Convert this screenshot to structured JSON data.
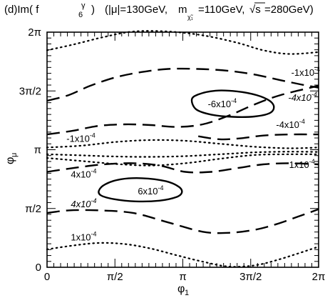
{
  "chart_data": {
    "type": "contour",
    "title": {
      "panel": "(d)",
      "quantity_prefix": "Im(",
      "quantity_symbol": "f",
      "quantity_superscript": "γ",
      "quantity_subscript": "6",
      "quantity_suffix": ")",
      "params_mu": "(|μ|=130GeV,",
      "params_m": "m",
      "params_m_sub": "χ̃₁",
      "params_m_value": "=110GeV,",
      "params_sqrt": "√s",
      "params_s_value": "=280GeV)"
    },
    "xlabel": {
      "symbol": "φ",
      "sub": "1"
    },
    "ylabel": {
      "symbol": "φ",
      "sub": "μ"
    },
    "xlim": [
      0,
      6.2832
    ],
    "ylim": [
      0,
      6.2832
    ],
    "x_ticks": [
      {
        "value": 0,
        "label": "0"
      },
      {
        "value": 1.5708,
        "label": "π/2"
      },
      {
        "value": 3.1416,
        "label": "π"
      },
      {
        "value": 4.7124,
        "label": "3π/2"
      },
      {
        "value": 6.2832,
        "label": "2π"
      }
    ],
    "y_ticks": [
      {
        "value": 0,
        "label": "0"
      },
      {
        "value": 1.5708,
        "label": "π/2"
      },
      {
        "value": 3.1416,
        "label": "π"
      },
      {
        "value": 4.7124,
        "label": "3π/2"
      },
      {
        "value": 6.2832,
        "label": "2π"
      }
    ],
    "grid": false,
    "contours": [
      {
        "id": "neg1e-4-top",
        "level": -0.0001,
        "style": "dotted",
        "x": [
          0,
          0.6,
          1.3,
          2.0,
          2.8,
          3.6,
          4.4,
          5.0,
          5.6,
          6.2832
        ],
        "y": [
          5.8,
          5.95,
          6.15,
          6.3,
          6.3,
          6.2,
          6.0,
          5.8,
          5.7,
          5.75
        ]
      },
      {
        "id": "neg1e-4-upper",
        "level": -0.0001,
        "style": "dashed",
        "x": [
          0,
          0.5,
          1.0,
          1.6,
          2.2,
          2.8,
          3.5,
          4.2,
          4.8,
          5.4,
          5.9,
          6.2832
        ],
        "y": [
          4.45,
          4.6,
          4.85,
          5.08,
          5.22,
          5.3,
          5.3,
          5.25,
          5.15,
          5.0,
          4.88,
          4.8
        ]
      },
      {
        "id": "neg4e-4-upper",
        "level": -0.0004,
        "style": "dashed",
        "x": [
          0,
          0.6,
          1.2,
          1.8,
          2.4,
          3.0,
          3.6,
          4.2,
          4.8,
          5.4,
          6.2832
        ],
        "y": [
          3.55,
          3.65,
          3.78,
          3.82,
          3.8,
          3.75,
          3.82,
          4.05,
          4.35,
          4.6,
          4.85
        ]
      },
      {
        "id": "neg6e-4",
        "level": -0.0006,
        "style": "solid",
        "closed": true,
        "x": [
          3.35,
          3.5,
          3.9,
          4.4,
          4.85,
          5.15,
          5.25,
          5.15,
          4.8,
          4.3,
          3.8,
          3.45,
          3.35
        ],
        "y": [
          4.48,
          4.62,
          4.72,
          4.7,
          4.6,
          4.45,
          4.28,
          4.12,
          4.03,
          4.02,
          4.08,
          4.22,
          4.38
        ]
      },
      {
        "id": "neg4e-4-right",
        "level": -0.0004,
        "style": "dashed",
        "x": [
          3.5,
          4.0,
          4.5,
          5.0,
          5.6,
          6.2832
        ],
        "y": [
          3.5,
          3.42,
          3.45,
          3.52,
          3.55,
          3.55
        ]
      },
      {
        "id": "neg1e-4-mid-a",
        "level": -0.0001,
        "style": "dotted",
        "x": [
          0,
          0.8,
          1.6,
          2.4,
          3.2,
          4.0,
          4.8,
          5.6,
          6.2832
        ],
        "y": [
          3.2,
          3.25,
          3.35,
          3.4,
          3.38,
          3.3,
          3.22,
          3.18,
          3.2
        ]
      },
      {
        "id": "neg1e-4-mid-b",
        "level": -0.0001,
        "style": "dotted",
        "x": [
          0,
          0.8,
          1.6,
          2.4,
          3.2,
          4.0,
          4.8,
          5.6,
          6.2832
        ],
        "y": [
          3.02,
          2.99,
          2.96,
          2.95,
          2.97,
          3.02,
          3.07,
          3.09,
          3.08
        ]
      },
      {
        "id": "pos1e-4-mid",
        "level": 0.0001,
        "style": "dotted",
        "x": [
          0,
          0.8,
          1.6,
          2.4,
          3.2,
          4.0,
          4.8,
          5.6,
          6.2832
        ],
        "y": [
          2.92,
          2.84,
          2.76,
          2.72,
          2.78,
          2.9,
          3.0,
          3.02,
          3.02
        ]
      },
      {
        "id": "pos4e-4-upper",
        "level": 0.0004,
        "style": "dashed",
        "x": [
          0,
          0.6,
          1.3,
          2.0,
          2.6,
          3.2,
          3.8,
          4.4,
          5.0,
          5.6,
          6.2832
        ],
        "y": [
          2.55,
          2.65,
          2.75,
          2.78,
          2.72,
          2.55,
          2.55,
          2.65,
          2.75,
          2.78,
          2.75
        ]
      },
      {
        "id": "pos6e-4",
        "level": 0.0006,
        "style": "solid",
        "closed": true,
        "x": [
          1.2,
          1.35,
          1.7,
          2.2,
          2.75,
          3.05,
          3.12,
          3.0,
          2.6,
          2.05,
          1.55,
          1.25,
          1.2
        ],
        "y": [
          2.05,
          2.22,
          2.35,
          2.38,
          2.3,
          2.15,
          2.0,
          1.88,
          1.78,
          1.76,
          1.82,
          1.92,
          2.0
        ]
      },
      {
        "id": "pos4e-4-lower",
        "level": 0.0004,
        "style": "dashed",
        "x": [
          0,
          0.5,
          1.2,
          2.0,
          2.8,
          3.6,
          4.2,
          4.8,
          5.3,
          5.8,
          6.2832
        ],
        "y": [
          1.45,
          1.52,
          1.52,
          1.45,
          1.2,
          0.95,
          0.92,
          1.0,
          1.15,
          1.35,
          1.55
        ]
      },
      {
        "id": "pos1e-4-lower",
        "level": 0.0001,
        "style": "dotted",
        "x": [
          0,
          0.6,
          1.2,
          1.8,
          2.4,
          3.0,
          3.6,
          4.2,
          4.8,
          5.4,
          6.2832
        ],
        "y": [
          0.48,
          0.58,
          0.65,
          0.62,
          0.5,
          0.32,
          0.15,
          0.02,
          0.05,
          0.22,
          0.55
        ]
      }
    ],
    "annotations": [
      {
        "id": "lbl-neg1e-4-top",
        "mantissa": "-1x10",
        "exponent": "-4",
        "italic": false,
        "x": 5.65,
        "y": 5.12
      },
      {
        "id": "lbl-neg4e-4-upper",
        "mantissa": "-4x10",
        "exponent": "-4",
        "italic": true,
        "x": 5.58,
        "y": 4.45
      },
      {
        "id": "lbl-neg6e-4",
        "mantissa": "-6x10",
        "exponent": "-4",
        "italic": false,
        "x": 3.72,
        "y": 4.28
      },
      {
        "id": "lbl-neg4e-4-right",
        "mantissa": "-4x10",
        "exponent": "-4",
        "italic": false,
        "x": 5.3,
        "y": 3.72
      },
      {
        "id": "lbl-neg1e-4-mid",
        "mantissa": "-1x10",
        "exponent": "-4",
        "italic": false,
        "x": 0.45,
        "y": 3.35
      },
      {
        "id": "lbl-pos1e-4-mid",
        "mantissa": "1x10",
        "exponent": "-4",
        "italic": false,
        "x": 5.6,
        "y": 2.65
      },
      {
        "id": "lbl-pos4e-4-upper",
        "mantissa": "4x10",
        "exponent": "-4",
        "italic": false,
        "x": 0.55,
        "y": 2.4
      },
      {
        "id": "lbl-pos6e-4",
        "mantissa": "6x10",
        "exponent": "-4",
        "italic": false,
        "x": 2.1,
        "y": 1.95
      },
      {
        "id": "lbl-pos4e-4-lower",
        "mantissa": "4x10",
        "exponent": "-4",
        "italic": true,
        "x": 0.55,
        "y": 1.6
      },
      {
        "id": "lbl-pos1e-4-lower",
        "mantissa": "1x10",
        "exponent": "-4",
        "italic": false,
        "x": 0.55,
        "y": 0.72
      }
    ]
  }
}
